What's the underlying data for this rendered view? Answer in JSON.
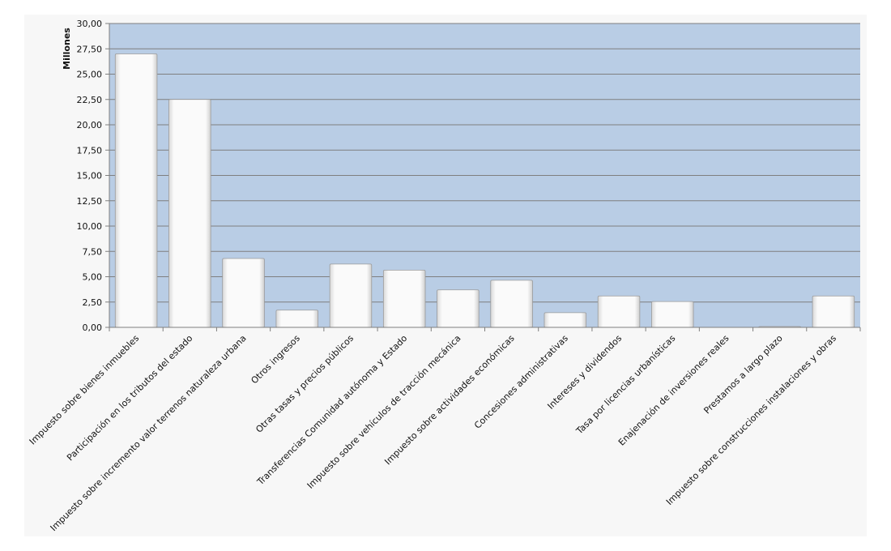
{
  "chart_data": {
    "type": "bar",
    "title": "",
    "xlabel": "",
    "ylabel": "Millones",
    "ylim": [
      0,
      30
    ],
    "yticks": [
      "0,00",
      "2,50",
      "5,00",
      "7,50",
      "10,00",
      "12,50",
      "15,00",
      "17,50",
      "20,00",
      "22,50",
      "25,00",
      "27,50",
      "30,00"
    ],
    "grid": true,
    "legend": "none",
    "categories": [
      "Impuesto sobre bienes inmuebles",
      "Participación en los tributos del estado",
      "Impuesto sobre incremento valor terrenos naturaleza urbana",
      "Otros ingresos",
      "Otras tasas y precios públicos",
      "Transferencias Comunidad autónoma y Estado",
      "Impuesto sobre vehículos de tracción mecánica",
      "Impuesto sobre actividades económicas",
      "Concesiones administrativas",
      "Intereses y dividendos",
      "Tasa por licencias urbanísticas",
      "Enajenación de inversiones reales",
      "Prestamos a largo plazo",
      "Impuesto sobre construcciones instalaciones y obras"
    ],
    "values": [
      27.0,
      22.5,
      6.8,
      1.7,
      6.25,
      5.65,
      3.7,
      4.65,
      1.45,
      3.1,
      2.55,
      0,
      0.08,
      3.1
    ],
    "colors": {
      "plot_background": "#b9cde5",
      "bar_fill": "#f7f7f7",
      "gridline": "#7f7f7f",
      "chart_background": "#f7f7f7"
    }
  }
}
